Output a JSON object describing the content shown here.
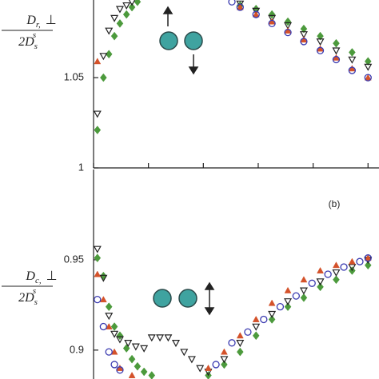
{
  "chart_data": [
    {
      "type": "scatter",
      "ylabel": {
        "numerator": "D",
        "numerator_sub": "r,",
        "numerator_mark": "⊥",
        "denominator": "2D",
        "denominator_sub": "s",
        "denominator_sup": "s"
      },
      "xlim": [
        0,
        5.2
      ],
      "xticks": [
        0,
        1,
        2,
        3,
        4,
        5
      ],
      "ylim": [
        1,
        1.093
      ],
      "yticks": [
        1,
        1.05
      ],
      "series": [
        {
          "marker": "diamond",
          "color": "#4c9a3c",
          "x": [
            0.07,
            0.18,
            0.28,
            0.38,
            0.48,
            0.6,
            0.7,
            0.8,
            2.67,
            2.96,
            3.25,
            3.54,
            3.83,
            4.13,
            4.42,
            4.71,
            5.0
          ],
          "values": [
            1.021,
            1.05,
            1.063,
            1.073,
            1.08,
            1.085,
            1.089,
            1.092,
            1.09,
            1.088,
            1.085,
            1.081,
            1.077,
            1.073,
            1.069,
            1.064,
            1.059
          ]
        },
        {
          "marker": "triangle-down",
          "color": "#222222",
          "x": [
            0.07,
            0.18,
            0.28,
            0.38,
            0.48,
            0.6,
            0.7,
            2.67,
            2.96,
            3.25,
            3.54,
            3.83,
            4.13,
            4.42,
            4.71,
            5.0
          ],
          "values": [
            1.03,
            1.062,
            1.076,
            1.083,
            1.088,
            1.09,
            1.092,
            1.091,
            1.087,
            1.083,
            1.079,
            1.074,
            1.07,
            1.065,
            1.06,
            1.056
          ]
        },
        {
          "marker": "triangle-up",
          "color": "#d4522a",
          "x": [
            0.07,
            2.67,
            2.96,
            3.25,
            3.54,
            3.83,
            4.13,
            4.42,
            4.71,
            5.0
          ],
          "values": [
            1.059,
            1.089,
            1.085,
            1.081,
            1.076,
            1.071,
            1.066,
            1.061,
            1.055,
            1.05
          ]
        },
        {
          "marker": "circle",
          "color": "#3a3ab0",
          "x": [
            2.52,
            2.67,
            2.96,
            3.25,
            3.54,
            3.83,
            4.13,
            4.42,
            4.71,
            5.0
          ],
          "values": [
            1.092,
            1.089,
            1.085,
            1.08,
            1.075,
            1.07,
            1.065,
            1.06,
            1.054,
            1.05
          ]
        }
      ]
    },
    {
      "type": "scatter",
      "annotation": "(b)",
      "ylabel": {
        "numerator": "D",
        "numerator_sub": "c,",
        "numerator_mark": "⊥",
        "denominator": "2D",
        "denominator_sub": "s",
        "denominator_sup": "s"
      },
      "xlim": [
        0,
        5.2
      ],
      "ylim": [
        0.884,
        1.0
      ],
      "yticks": [
        0.9,
        0.95
      ],
      "series": [
        {
          "marker": "diamond",
          "color": "#4c9a3c",
          "x": [
            0.07,
            0.18,
            0.28,
            0.38,
            0.48,
            0.6,
            0.7,
            0.8,
            0.92,
            1.06,
            2.09,
            2.38,
            2.67,
            2.96,
            3.25,
            3.54,
            3.83,
            4.13,
            4.42,
            4.71,
            5.0
          ],
          "values": [
            0.951,
            0.941,
            0.924,
            0.913,
            0.908,
            0.901,
            0.895,
            0.891,
            0.888,
            0.886,
            0.886,
            0.892,
            0.899,
            0.908,
            0.917,
            0.924,
            0.929,
            0.935,
            0.939,
            0.944,
            0.947
          ]
        },
        {
          "marker": "triangle-down",
          "color": "#222222",
          "x": [
            0.07,
            0.18,
            0.28,
            0.38,
            0.48,
            0.63,
            0.77,
            0.92,
            1.06,
            1.21,
            1.36,
            1.5,
            1.65,
            1.79,
            1.94,
            2.09,
            2.38,
            2.67,
            2.96,
            3.25,
            3.54,
            3.83,
            4.13,
            4.42,
            4.71,
            5.0
          ],
          "values": [
            0.956,
            0.94,
            0.919,
            0.909,
            0.906,
            0.904,
            0.902,
            0.901,
            0.907,
            0.907,
            0.907,
            0.904,
            0.899,
            0.895,
            0.89,
            0.888,
            0.895,
            0.904,
            0.913,
            0.92,
            0.927,
            0.933,
            0.938,
            0.943,
            0.946,
            0.95
          ]
        },
        {
          "marker": "triangle-up",
          "color": "#d4522a",
          "x": [
            0.07,
            0.18,
            0.28,
            0.38,
            0.48,
            0.7,
            2.09,
            2.38,
            2.67,
            2.96,
            3.25,
            3.54,
            3.83,
            4.13,
            4.42,
            4.71,
            5.0
          ],
          "values": [
            0.942,
            0.928,
            0.913,
            0.899,
            0.89,
            0.886,
            0.89,
            0.899,
            0.908,
            0.917,
            0.926,
            0.933,
            0.939,
            0.944,
            0.947,
            0.949,
            0.951
          ]
        },
        {
          "marker": "circle",
          "color": "#3a3ab0",
          "x": [
            0.07,
            0.18,
            0.28,
            0.38,
            0.48,
            2.23,
            2.52,
            2.81,
            3.1,
            3.4,
            3.69,
            3.98,
            4.27,
            4.56,
            4.85,
            5.0
          ],
          "values": [
            0.928,
            0.913,
            0.899,
            0.892,
            0.889,
            0.892,
            0.904,
            0.91,
            0.917,
            0.924,
            0.93,
            0.937,
            0.942,
            0.946,
            0.949,
            0.951
          ]
        }
      ]
    }
  ]
}
